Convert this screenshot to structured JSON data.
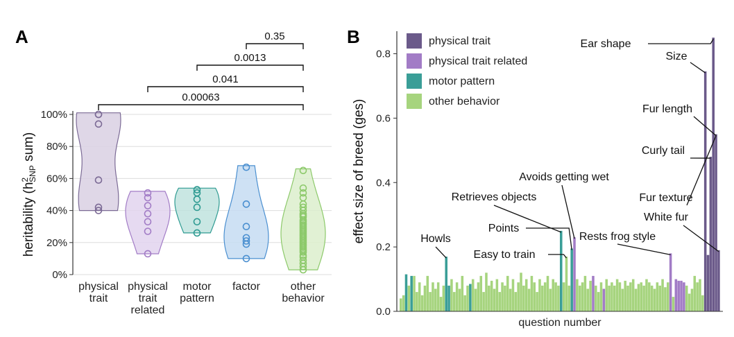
{
  "chart_data": [
    {
      "panel": "A",
      "type": "violin",
      "ylabel_main": "heritability (h",
      "ylabel_sup": "2",
      "ylabel_sub": "SNP",
      "ylabel_end": " sum)",
      "ylim": [
        0,
        100
      ],
      "yticks": [
        "0%",
        "20%",
        "40%",
        "60%",
        "80%",
        "100%"
      ],
      "grid": true,
      "categories": [
        {
          "label": [
            "physical",
            "trait"
          ],
          "color": "#7b6a95",
          "fill": "#d9d0e3",
          "points": [
            40,
            42,
            59,
            94,
            100,
            100
          ],
          "range": [
            40,
            101
          ]
        },
        {
          "label": [
            "physical",
            "trait",
            "related"
          ],
          "color": "#a27cc6",
          "fill": "#e2d3ee",
          "points": [
            13,
            27,
            33,
            38,
            43,
            48,
            51
          ],
          "range": [
            13,
            52
          ]
        },
        {
          "label": [
            "motor",
            "pattern"
          ],
          "color": "#2f9b92",
          "fill": "#bfe3de",
          "points": [
            26,
            33,
            42,
            47,
            51,
            53
          ],
          "range": [
            26,
            54
          ]
        },
        {
          "label": [
            "factor"
          ],
          "color": "#4a8fd0",
          "fill": "#c6dcf2",
          "points": [
            10,
            19,
            21,
            23,
            30,
            44,
            67
          ],
          "range": [
            10,
            68
          ]
        },
        {
          "label": [
            "other",
            "behavior"
          ],
          "color": "#8cc96a",
          "fill": "#dcefcd",
          "points": [
            3,
            5,
            7,
            9,
            11,
            12,
            14,
            15,
            16,
            17,
            18,
            19,
            20,
            21,
            22,
            23,
            24,
            25,
            26,
            27,
            28,
            29,
            30,
            31,
            32,
            33,
            34,
            36,
            37,
            38,
            40,
            42,
            44,
            48,
            51,
            54,
            65
          ],
          "range": [
            3,
            66
          ]
        }
      ],
      "comparisons": [
        {
          "from": 3,
          "to": 4,
          "label": "0.35"
        },
        {
          "from": 2,
          "to": 4,
          "label": "0.0013"
        },
        {
          "from": 1,
          "to": 4,
          "label": "0.041"
        },
        {
          "from": 0,
          "to": 4,
          "label": "0.00063"
        }
      ]
    },
    {
      "panel": "B",
      "type": "bar",
      "xlabel": "question number",
      "ylabel": "effect size of breed (ges)",
      "ylim": [
        0,
        0.87
      ],
      "yticks": [
        "0.0",
        "0.2",
        "0.4",
        "0.6",
        "0.8"
      ],
      "legend": {
        "placement": "top-left",
        "entries": [
          {
            "name": "physical trait",
            "color": "#6b5a8a"
          },
          {
            "name": "physical trait related",
            "color": "#a27cc6"
          },
          {
            "name": "motor pattern",
            "color": "#3a9e97"
          },
          {
            "name": "other behavior",
            "color": "#a6d47e"
          }
        ]
      },
      "colors": {
        "P": "#6b5a8a",
        "R": "#a27cc6",
        "M": "#3a9e97",
        "O": "#a6d47e"
      },
      "bars": [
        {
          "v": 0.04,
          "c": "O"
        },
        {
          "v": 0.05,
          "c": "O"
        },
        {
          "v": 0.115,
          "c": "M"
        },
        {
          "v": 0.08,
          "c": "O"
        },
        {
          "v": 0.11,
          "c": "M"
        },
        {
          "v": 0.11,
          "c": "O"
        },
        {
          "v": 0.06,
          "c": "O"
        },
        {
          "v": 0.09,
          "c": "O"
        },
        {
          "v": 0.05,
          "c": "O"
        },
        {
          "v": 0.08,
          "c": "O"
        },
        {
          "v": 0.11,
          "c": "O"
        },
        {
          "v": 0.06,
          "c": "O"
        },
        {
          "v": 0.09,
          "c": "O"
        },
        {
          "v": 0.07,
          "c": "O"
        },
        {
          "v": 0.09,
          "c": "O"
        },
        {
          "v": 0.045,
          "c": "O"
        },
        {
          "v": 0.08,
          "c": "O"
        },
        {
          "v": 0.17,
          "c": "M"
        },
        {
          "v": 0.08,
          "c": "M"
        },
        {
          "v": 0.1,
          "c": "O"
        },
        {
          "v": 0.06,
          "c": "O"
        },
        {
          "v": 0.09,
          "c": "O"
        },
        {
          "v": 0.07,
          "c": "O"
        },
        {
          "v": 0.11,
          "c": "O"
        },
        {
          "v": 0.05,
          "c": "O"
        },
        {
          "v": 0.08,
          "c": "O"
        },
        {
          "v": 0.085,
          "c": "M"
        },
        {
          "v": 0.1,
          "c": "O"
        },
        {
          "v": 0.07,
          "c": "O"
        },
        {
          "v": 0.09,
          "c": "O"
        },
        {
          "v": 0.11,
          "c": "O"
        },
        {
          "v": 0.06,
          "c": "O"
        },
        {
          "v": 0.12,
          "c": "O"
        },
        {
          "v": 0.08,
          "c": "O"
        },
        {
          "v": 0.095,
          "c": "O"
        },
        {
          "v": 0.07,
          "c": "O"
        },
        {
          "v": 0.1,
          "c": "O"
        },
        {
          "v": 0.06,
          "c": "O"
        },
        {
          "v": 0.09,
          "c": "O"
        },
        {
          "v": 0.08,
          "c": "O"
        },
        {
          "v": 0.11,
          "c": "O"
        },
        {
          "v": 0.07,
          "c": "O"
        },
        {
          "v": 0.1,
          "c": "O"
        },
        {
          "v": 0.06,
          "c": "O"
        },
        {
          "v": 0.09,
          "c": "O"
        },
        {
          "v": 0.12,
          "c": "O"
        },
        {
          "v": 0.08,
          "c": "O"
        },
        {
          "v": 0.1,
          "c": "O"
        },
        {
          "v": 0.07,
          "c": "O"
        },
        {
          "v": 0.11,
          "c": "O"
        },
        {
          "v": 0.09,
          "c": "O"
        },
        {
          "v": 0.06,
          "c": "O"
        },
        {
          "v": 0.1,
          "c": "O"
        },
        {
          "v": 0.08,
          "c": "O"
        },
        {
          "v": 0.09,
          "c": "O"
        },
        {
          "v": 0.11,
          "c": "O"
        },
        {
          "v": 0.07,
          "c": "O"
        },
        {
          "v": 0.1,
          "c": "O"
        },
        {
          "v": 0.09,
          "c": "O"
        },
        {
          "v": 0.08,
          "c": "O"
        },
        {
          "v": 0.25,
          "c": "M"
        },
        {
          "v": 0.09,
          "c": "O"
        },
        {
          "v": 0.17,
          "c": "O"
        },
        {
          "v": 0.08,
          "c": "O"
        },
        {
          "v": 0.195,
          "c": "M"
        },
        {
          "v": 0.23,
          "c": "R"
        },
        {
          "v": 0.1,
          "c": "O"
        },
        {
          "v": 0.08,
          "c": "O"
        },
        {
          "v": 0.09,
          "c": "O"
        },
        {
          "v": 0.11,
          "c": "O"
        },
        {
          "v": 0.07,
          "c": "O"
        },
        {
          "v": 0.095,
          "c": "O"
        },
        {
          "v": 0.11,
          "c": "R"
        },
        {
          "v": 0.08,
          "c": "O"
        },
        {
          "v": 0.06,
          "c": "O"
        },
        {
          "v": 0.09,
          "c": "O"
        },
        {
          "v": 0.07,
          "c": "R"
        },
        {
          "v": 0.1,
          "c": "O"
        },
        {
          "v": 0.08,
          "c": "O"
        },
        {
          "v": 0.09,
          "c": "O"
        },
        {
          "v": 0.08,
          "c": "O"
        },
        {
          "v": 0.1,
          "c": "O"
        },
        {
          "v": 0.09,
          "c": "O"
        },
        {
          "v": 0.07,
          "c": "O"
        },
        {
          "v": 0.095,
          "c": "O"
        },
        {
          "v": 0.08,
          "c": "O"
        },
        {
          "v": 0.09,
          "c": "O"
        },
        {
          "v": 0.1,
          "c": "O"
        },
        {
          "v": 0.07,
          "c": "O"
        },
        {
          "v": 0.085,
          "c": "O"
        },
        {
          "v": 0.09,
          "c": "O"
        },
        {
          "v": 0.08,
          "c": "O"
        },
        {
          "v": 0.1,
          "c": "O"
        },
        {
          "v": 0.09,
          "c": "O"
        },
        {
          "v": 0.08,
          "c": "O"
        },
        {
          "v": 0.07,
          "c": "O"
        },
        {
          "v": 0.09,
          "c": "O"
        },
        {
          "v": 0.08,
          "c": "O"
        },
        {
          "v": 0.1,
          "c": "O"
        },
        {
          "v": 0.075,
          "c": "O"
        },
        {
          "v": 0.09,
          "c": "O"
        },
        {
          "v": 0.18,
          "c": "R"
        },
        {
          "v": 0.045,
          "c": "O"
        },
        {
          "v": 0.1,
          "c": "R"
        },
        {
          "v": 0.095,
          "c": "R"
        },
        {
          "v": 0.095,
          "c": "R"
        },
        {
          "v": 0.09,
          "c": "R"
        },
        {
          "v": 0.08,
          "c": "O"
        },
        {
          "v": 0.055,
          "c": "O"
        },
        {
          "v": 0.07,
          "c": "O"
        },
        {
          "v": 0.11,
          "c": "O"
        },
        {
          "v": 0.09,
          "c": "O"
        },
        {
          "v": 0.1,
          "c": "O"
        },
        {
          "v": 0.05,
          "c": "O"
        },
        {
          "v": 0.745,
          "c": "P"
        },
        {
          "v": 0.175,
          "c": "P"
        },
        {
          "v": 0.48,
          "c": "P"
        },
        {
          "v": 0.85,
          "c": "P"
        },
        {
          "v": 0.55,
          "c": "P"
        },
        {
          "v": 0.19,
          "c": "P"
        }
      ],
      "annotations": [
        {
          "text": "Howls",
          "bar": 17
        },
        {
          "text": "Retrieves objects",
          "bar": 60
        },
        {
          "text": "Points",
          "bar": 64
        },
        {
          "text": "Easy to train",
          "bar": 62
        },
        {
          "text": "Avoids getting wet",
          "bar": 65
        },
        {
          "text": "Rests frog style",
          "bar": 101
        },
        {
          "text": "Ear shape",
          "bar": 117
        },
        {
          "text": "Size",
          "bar": 114
        },
        {
          "text": "Fur length",
          "bar": 118
        },
        {
          "text": "Curly tail",
          "bar": 116
        },
        {
          "text": "Fur texture",
          "bar": 118
        },
        {
          "text": "White fur",
          "bar": 119
        }
      ]
    }
  ]
}
